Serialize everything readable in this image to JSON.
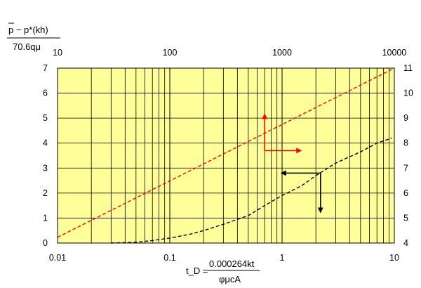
{
  "chart_data": {
    "type": "line",
    "title": "",
    "y_left_label": {
      "numerator": "p − p*(kh)",
      "denominator": "70.6qμ"
    },
    "x_bottom_label": {
      "lhs": "t_D =",
      "numerator": "0.000264kt",
      "denominator": "φμcA"
    },
    "x_bottom": {
      "scale": "log",
      "range": [
        0.01,
        10
      ],
      "ticks": [
        "0.01",
        "0.1",
        "1",
        "10"
      ]
    },
    "x_top": {
      "scale": "log",
      "range": [
        10,
        10000
      ],
      "ticks": [
        "10",
        "100",
        "1000",
        "10000"
      ]
    },
    "y_left": {
      "range": [
        0,
        7
      ],
      "ticks": [
        "0",
        "1",
        "2",
        "3",
        "4",
        "5",
        "6",
        "7"
      ]
    },
    "y_right": {
      "range": [
        4,
        11
      ],
      "ticks": [
        "4",
        "5",
        "6",
        "7",
        "8",
        "9",
        "10",
        "11"
      ]
    },
    "grid": true,
    "plot_background": "#ffff99",
    "series": [
      {
        "color": "#ff0000",
        "style": "dashed",
        "axis_x": "top",
        "axis_y": "left",
        "points": [
          [
            10,
            0.23
          ],
          [
            10000,
            7.0
          ]
        ]
      },
      {
        "color": "#000000",
        "style": "dashed",
        "axis_x": "bottom",
        "axis_y": "right",
        "points": [
          [
            0.03,
            4.0
          ],
          [
            0.05,
            4.03
          ],
          [
            0.07,
            4.1
          ],
          [
            0.1,
            4.2
          ],
          [
            0.15,
            4.35
          ],
          [
            0.2,
            4.5
          ],
          [
            0.3,
            4.75
          ],
          [
            0.5,
            5.1
          ],
          [
            0.7,
            5.5
          ],
          [
            1.0,
            5.9
          ],
          [
            1.5,
            6.3
          ],
          [
            2.0,
            6.7
          ],
          [
            3.0,
            7.2
          ],
          [
            5.0,
            7.65
          ],
          [
            7.0,
            8.0
          ],
          [
            9.5,
            8.2
          ]
        ]
      }
    ],
    "annotations": [
      {
        "type": "arrows",
        "color": "#ff0000",
        "origin": {
          "axis_x": "top",
          "x": 700,
          "axis_y": "left",
          "y": 3.7
        },
        "directions": [
          "up",
          "right"
        ]
      },
      {
        "type": "arrows",
        "color": "#000000",
        "origin": {
          "axis_x": "bottom",
          "x": 2.2,
          "axis_y": "right",
          "y": 6.8
        },
        "directions": [
          "left",
          "down"
        ]
      }
    ]
  }
}
